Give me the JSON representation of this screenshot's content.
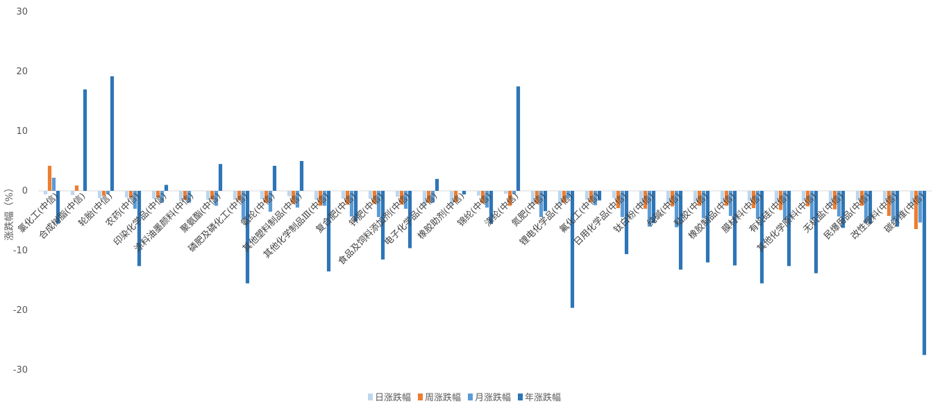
{
  "chart_data": {
    "type": "bar",
    "title": "",
    "xlabel": "",
    "ylabel": "涨跌幅（%）",
    "ylim": [
      -30,
      30
    ],
    "yticks": [
      30,
      20,
      10,
      0,
      -10,
      -20,
      -30
    ],
    "grid": false,
    "legend_position": "bottom",
    "categories": [
      "氯化工(中信)",
      "合成树脂(中信)",
      "轮胎(中信)",
      "农药(中信)",
      "印染化学品(中信)",
      "涂料油墨颜料(中信)",
      "聚氨酯(中信)",
      "磷肥及磷化工(中信)",
      "氨纶(中信)",
      "其他塑料制品(中信)",
      "其他化学制品Ⅲ(中信)",
      "复合肥(中信)",
      "钾肥(中信)",
      "食品及饲料添加剂(中信)",
      "电子化学品(中信)",
      "橡胶助剂(中信)",
      "锦纶(中信)",
      "涤纶(中信)",
      "氮肥(中信)",
      "锂电化学品(中信)",
      "氟化工(中信)",
      "日用化学品(中信)",
      "钛白粉(中信)",
      "纯碱(中信)",
      "粘胶(中信)",
      "橡胶制品(中信)",
      "膜材料(中信)",
      "有机硅(中信)",
      "其他化学原料(中信)",
      "无机盐(中信)",
      "民爆用品(中信)",
      "改性塑料(中信)",
      "碳纤维(中信)"
    ],
    "series": [
      {
        "name": "日涨跌幅",
        "color": "#bdd7ee",
        "values": [
          -0.6,
          -0.7,
          -1.2,
          -1.1,
          -1.3,
          -1.7,
          -1.5,
          -1.5,
          -1.4,
          -0.9,
          -1.5,
          -1.3,
          -1.3,
          -1.0,
          -2.6,
          -2.4,
          -0.8,
          -0.5,
          -2.3,
          -2.3,
          -1.5,
          -1.2,
          -2.5,
          -2.2,
          -1.8,
          -1.9,
          -1.7,
          -1.9,
          -1.7,
          -2.5,
          -1.6,
          -1.8,
          -2.6
        ]
      },
      {
        "name": "周涨跌幅",
        "color": "#ed7d31",
        "values": [
          4.2,
          0.9,
          -0.8,
          -1.1,
          -1.1,
          -1.5,
          -1.4,
          -1.6,
          -2.0,
          -2.2,
          -2.5,
          -2.3,
          -2.2,
          -2.3,
          -2.0,
          -1.9,
          -2.1,
          -2.5,
          -2.2,
          -2.0,
          -1.9,
          -2.9,
          -3.0,
          -2.6,
          -2.5,
          -2.5,
          -2.9,
          -3.2,
          -2.6,
          -3.1,
          -2.5,
          -4.2,
          -6.4
        ]
      },
      {
        "name": "月涨跌幅",
        "color": "#5b9bd5",
        "values": [
          2.2,
          0.0,
          -0.5,
          -3.0,
          -2.0,
          -2.0,
          -2.5,
          -4.8,
          -3.5,
          -2.8,
          -2.5,
          -4.3,
          -4.4,
          -3.0,
          -2.0,
          0.0,
          -2.8,
          -0.5,
          -4.4,
          -1.2,
          -2.4,
          -4.4,
          -6.0,
          -6.1,
          -4.6,
          -4.2,
          -4.7,
          -4.9,
          -4.8,
          -4.3,
          -5.4,
          -5.0,
          -5.3
        ]
      },
      {
        "name": "年涨跌幅",
        "color": "#2e75b6",
        "values": [
          -5.5,
          17.0,
          19.2,
          -12.6,
          1.0,
          0.0,
          4.5,
          -15.5,
          4.2,
          5.0,
          -13.5,
          -5.1,
          -11.5,
          -9.6,
          2.0,
          -0.6,
          -5.5,
          17.5,
          -3.4,
          -19.6,
          -1.6,
          -10.6,
          -5.4,
          -13.2,
          -12.0,
          -12.5,
          -15.5,
          -12.6,
          -13.8,
          -6.2,
          -5.5,
          -6.0,
          -27.5
        ]
      }
    ]
  }
}
